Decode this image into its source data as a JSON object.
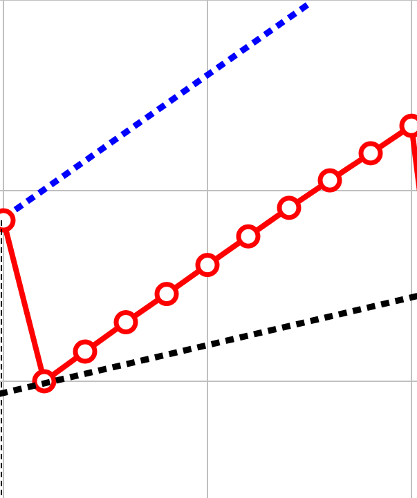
{
  "chart_data": {
    "type": "line",
    "title": "",
    "xlabel": "",
    "ylabel": "",
    "grid": true,
    "xlim": [
      0,
      10
    ],
    "ylim": [
      0,
      13
    ],
    "grid_x": [
      0,
      5,
      10
    ],
    "grid_y": [
      3,
      8,
      13
    ],
    "series": [
      {
        "color": "#0000ff",
        "style": "dotted",
        "marker": "none",
        "x": [
          0,
          7.5
        ],
        "y": [
          7.28,
          12.91
        ]
      },
      {
        "color": "#ff0000",
        "style": "solid",
        "marker": "circle",
        "x": [
          0,
          1,
          2,
          3,
          4,
          5,
          6,
          7,
          8,
          9,
          10,
          10.2
        ],
        "y": [
          7.22,
          3.0,
          3.78,
          4.55,
          5.29,
          6.05,
          6.8,
          7.55,
          8.27,
          8.98,
          9.7,
          8.0
        ]
      },
      {
        "color": "#000000",
        "style": "dotted",
        "marker": "none",
        "x": [
          -0.1,
          10.2
        ],
        "y": [
          2.67,
          5.25
        ]
      },
      {
        "color": "#000000",
        "style": "dashed-thin",
        "marker": "none",
        "x": [
          -0.05,
          -0.05
        ],
        "y": [
          7.22,
          -0.2
        ]
      }
    ]
  }
}
